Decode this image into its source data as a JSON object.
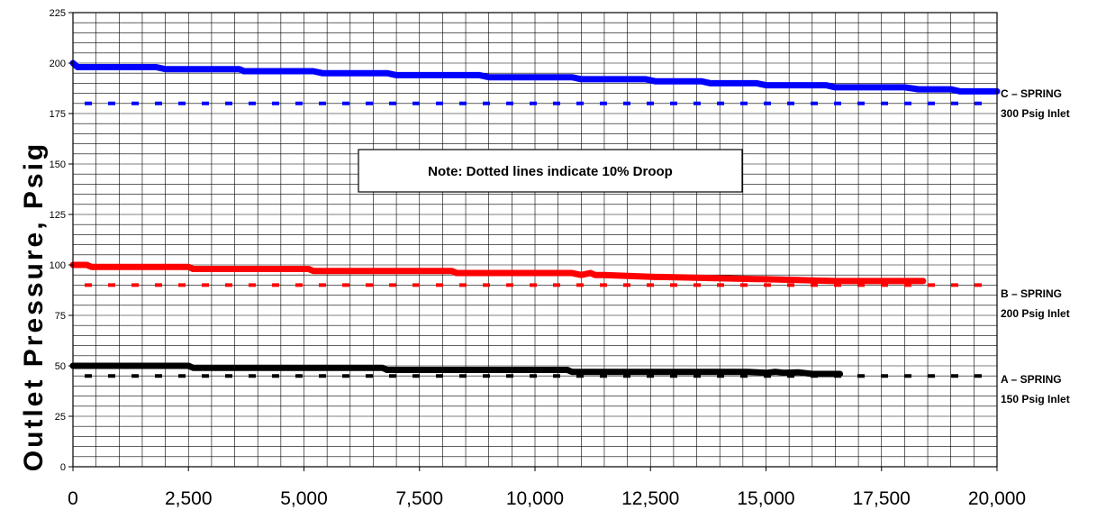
{
  "chart_data": {
    "type": "line",
    "title": "",
    "xlabel": "",
    "ylabel": "Outlet Pressure, Psig",
    "xlim": [
      0,
      20000
    ],
    "ylim": [
      0,
      225
    ],
    "x_ticks": [
      "0",
      "2,500",
      "5,000",
      "7,500",
      "10,000",
      "12,500",
      "15,000",
      "17,500",
      "20,000"
    ],
    "y_ticks": [
      "0",
      "25",
      "50",
      "75",
      "100",
      "125",
      "150",
      "175",
      "200",
      "225"
    ],
    "grid": true,
    "note": "Note:  Dotted lines indicate 10% Droop",
    "series": [
      {
        "name": "C – SPRING",
        "name_line2": "300 Psig Inlet",
        "color": "#0000ff",
        "droop_line": 180,
        "x": [
          0,
          100,
          1800,
          2000,
          3600,
          3700,
          5200,
          5400,
          6800,
          7000,
          8800,
          9000,
          10800,
          11000,
          12400,
          12600,
          13600,
          13800,
          14800,
          15000,
          16300,
          16500,
          18000,
          18300,
          19000,
          19200,
          20000
        ],
        "y": [
          200,
          198,
          198,
          197,
          197,
          196,
          196,
          195,
          195,
          194,
          194,
          193,
          193,
          192,
          192,
          191,
          191,
          190,
          190,
          189,
          189,
          188,
          188,
          187,
          187,
          186,
          186
        ]
      },
      {
        "name": "B – SPRING",
        "name_line2": "200 Psig Inlet",
        "color": "#ff0000",
        "droop_line": 90,
        "x": [
          0,
          300,
          400,
          2500,
          2600,
          5100,
          5200,
          8200,
          8300,
          10800,
          11000,
          11200,
          11300,
          11500,
          12600,
          12700,
          14800,
          14900,
          16500,
          16600,
          18400
        ],
        "y": [
          100,
          100,
          99,
          99,
          98,
          98,
          97,
          97,
          96,
          96,
          95,
          96,
          95,
          95,
          94,
          94,
          93,
          93,
          92,
          92,
          92
        ]
      },
      {
        "name": "A – SPRING",
        "name_line2": "150 Psig Inlet",
        "color": "#000000",
        "droop_line": 45,
        "x": [
          0,
          100,
          2500,
          2600,
          6700,
          6800,
          10700,
          10800,
          14600,
          15000,
          15200,
          15400,
          15700,
          16000,
          16600
        ],
        "y": [
          50,
          50,
          50,
          49,
          49,
          48,
          48,
          47,
          47,
          46.5,
          47,
          46.5,
          46.8,
          46,
          46
        ]
      }
    ]
  }
}
